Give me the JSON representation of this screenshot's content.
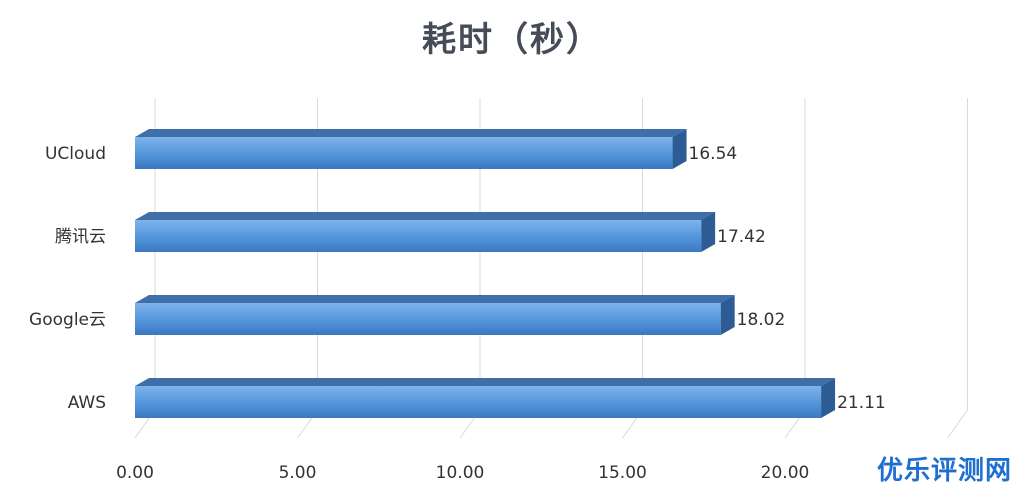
{
  "chart_data": {
    "type": "bar",
    "orientation": "horizontal",
    "title": "耗时（秒）",
    "categories": [
      "UCloud",
      "腾讯云",
      "Google云",
      "AWS"
    ],
    "values": [
      16.54,
      17.42,
      18.02,
      21.11
    ],
    "xlim": [
      0,
      25
    ],
    "xticks": [
      "0.00",
      "5.00",
      "10.00",
      "15.00",
      "20.00"
    ],
    "grid": true,
    "legend": "none",
    "bar_color": "#4f93d9"
  },
  "watermark": "优乐评测网"
}
